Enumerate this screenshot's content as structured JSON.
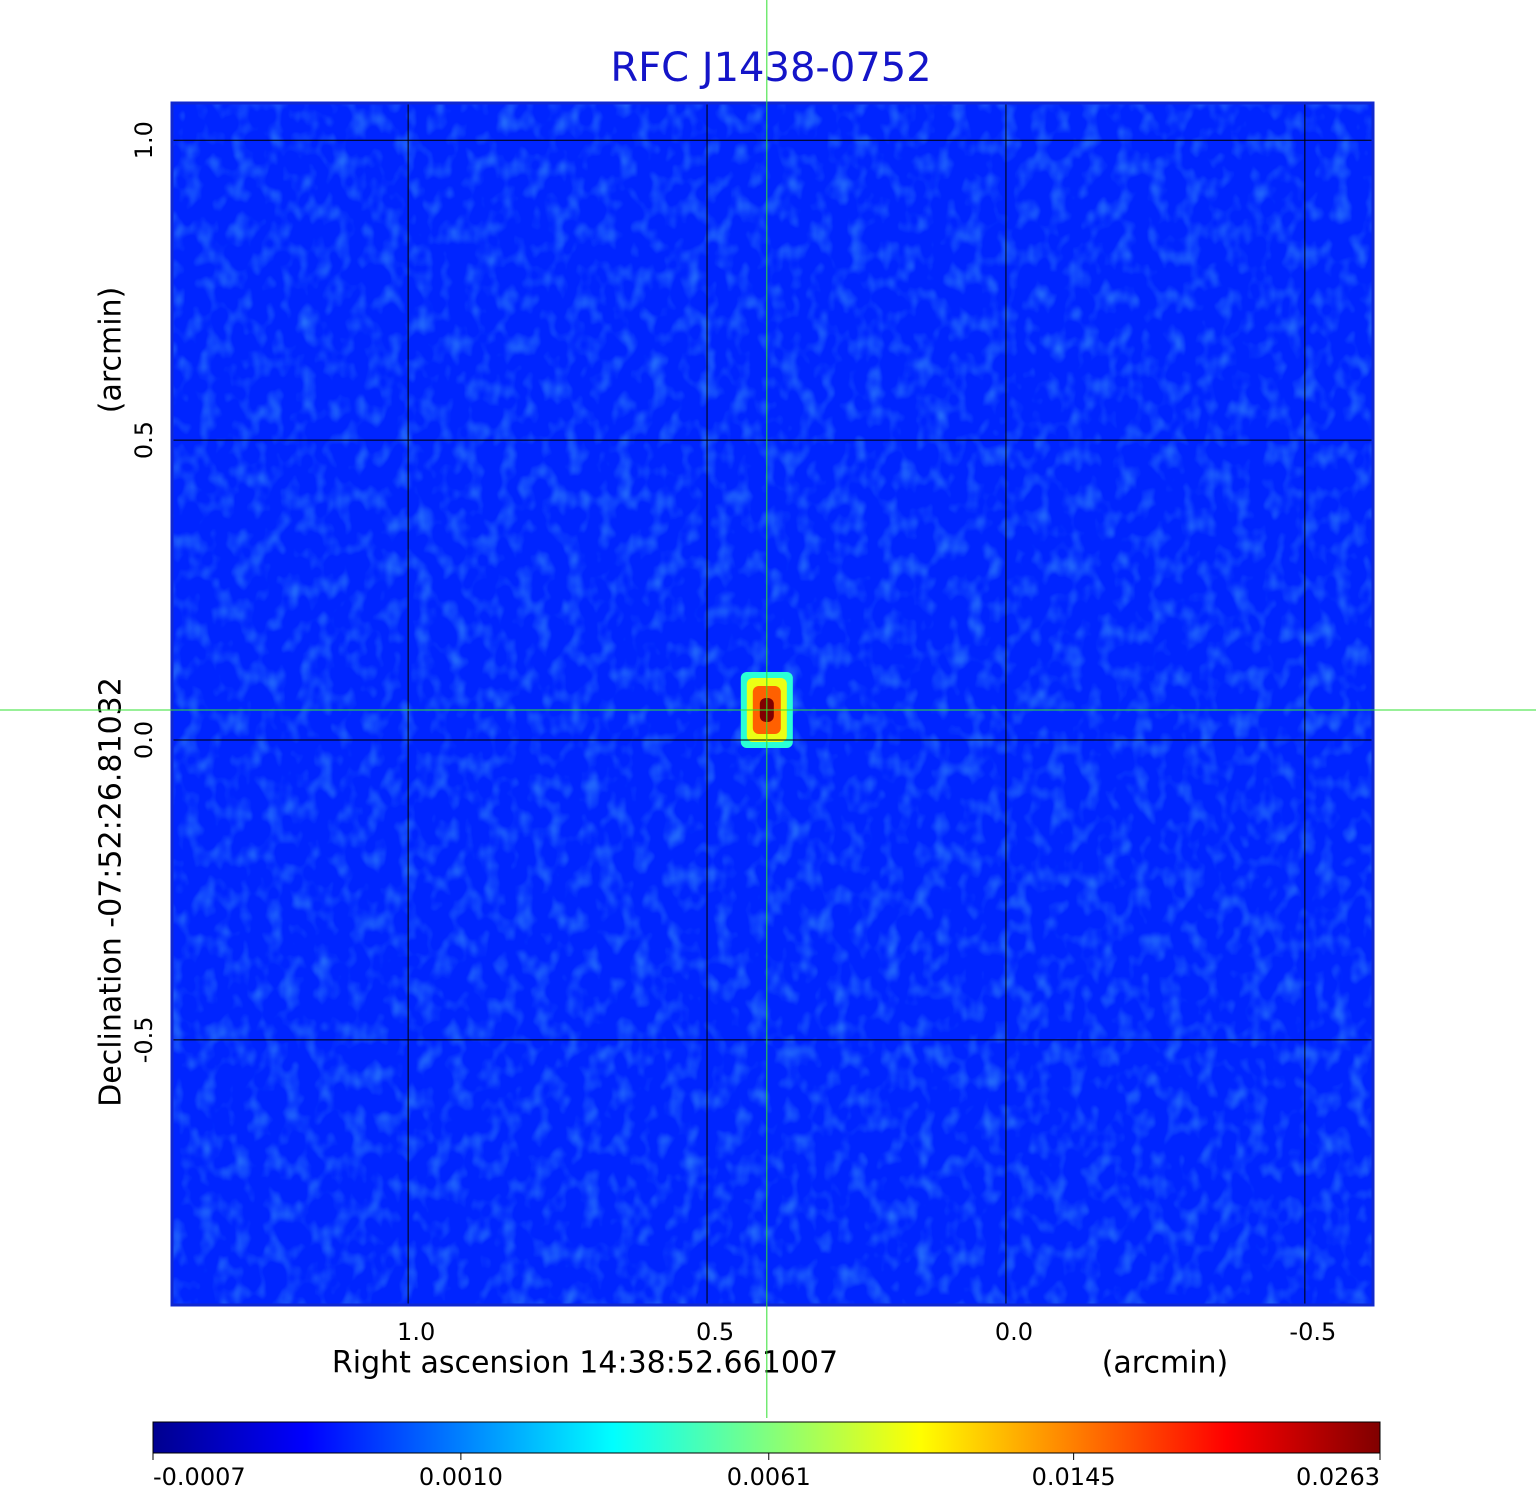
{
  "chart_data": {
    "type": "image",
    "title": "RFC J1438-0752",
    "xlabel": "Right ascension  14:38:52.661007",
    "xunit": "(arcmin)",
    "ylabel": "Declination  -07:52:26.81032",
    "yunit": "(arcmin)",
    "xlim": [
      1.395,
      -0.614
    ],
    "ylim": [
      -0.942,
      1.062
    ],
    "xticks": [
      {
        "value": 1,
        "label": "1.0"
      },
      0.5,
      {
        "value": 0,
        "label": "0.0"
      },
      -0.5
    ],
    "yticks": [
      {
        "value": 1,
        "label": "1.0"
      },
      0.5,
      {
        "value": 0,
        "label": "0.0"
      },
      -0.5
    ],
    "grid": true,
    "colormap": "jet",
    "colorbar": {
      "scale": "sqrt",
      "lim": [
        -0.0007,
        0.0263
      ],
      "ticks": [
        -0.0007,
        {
          "value": 0.001,
          "label": "0.0010"
        },
        0.0061,
        0.0145,
        0.0263
      ]
    },
    "peak": {
      "x": 0.4,
      "y": 0.05,
      "value": 0.0263
    }
  }
}
